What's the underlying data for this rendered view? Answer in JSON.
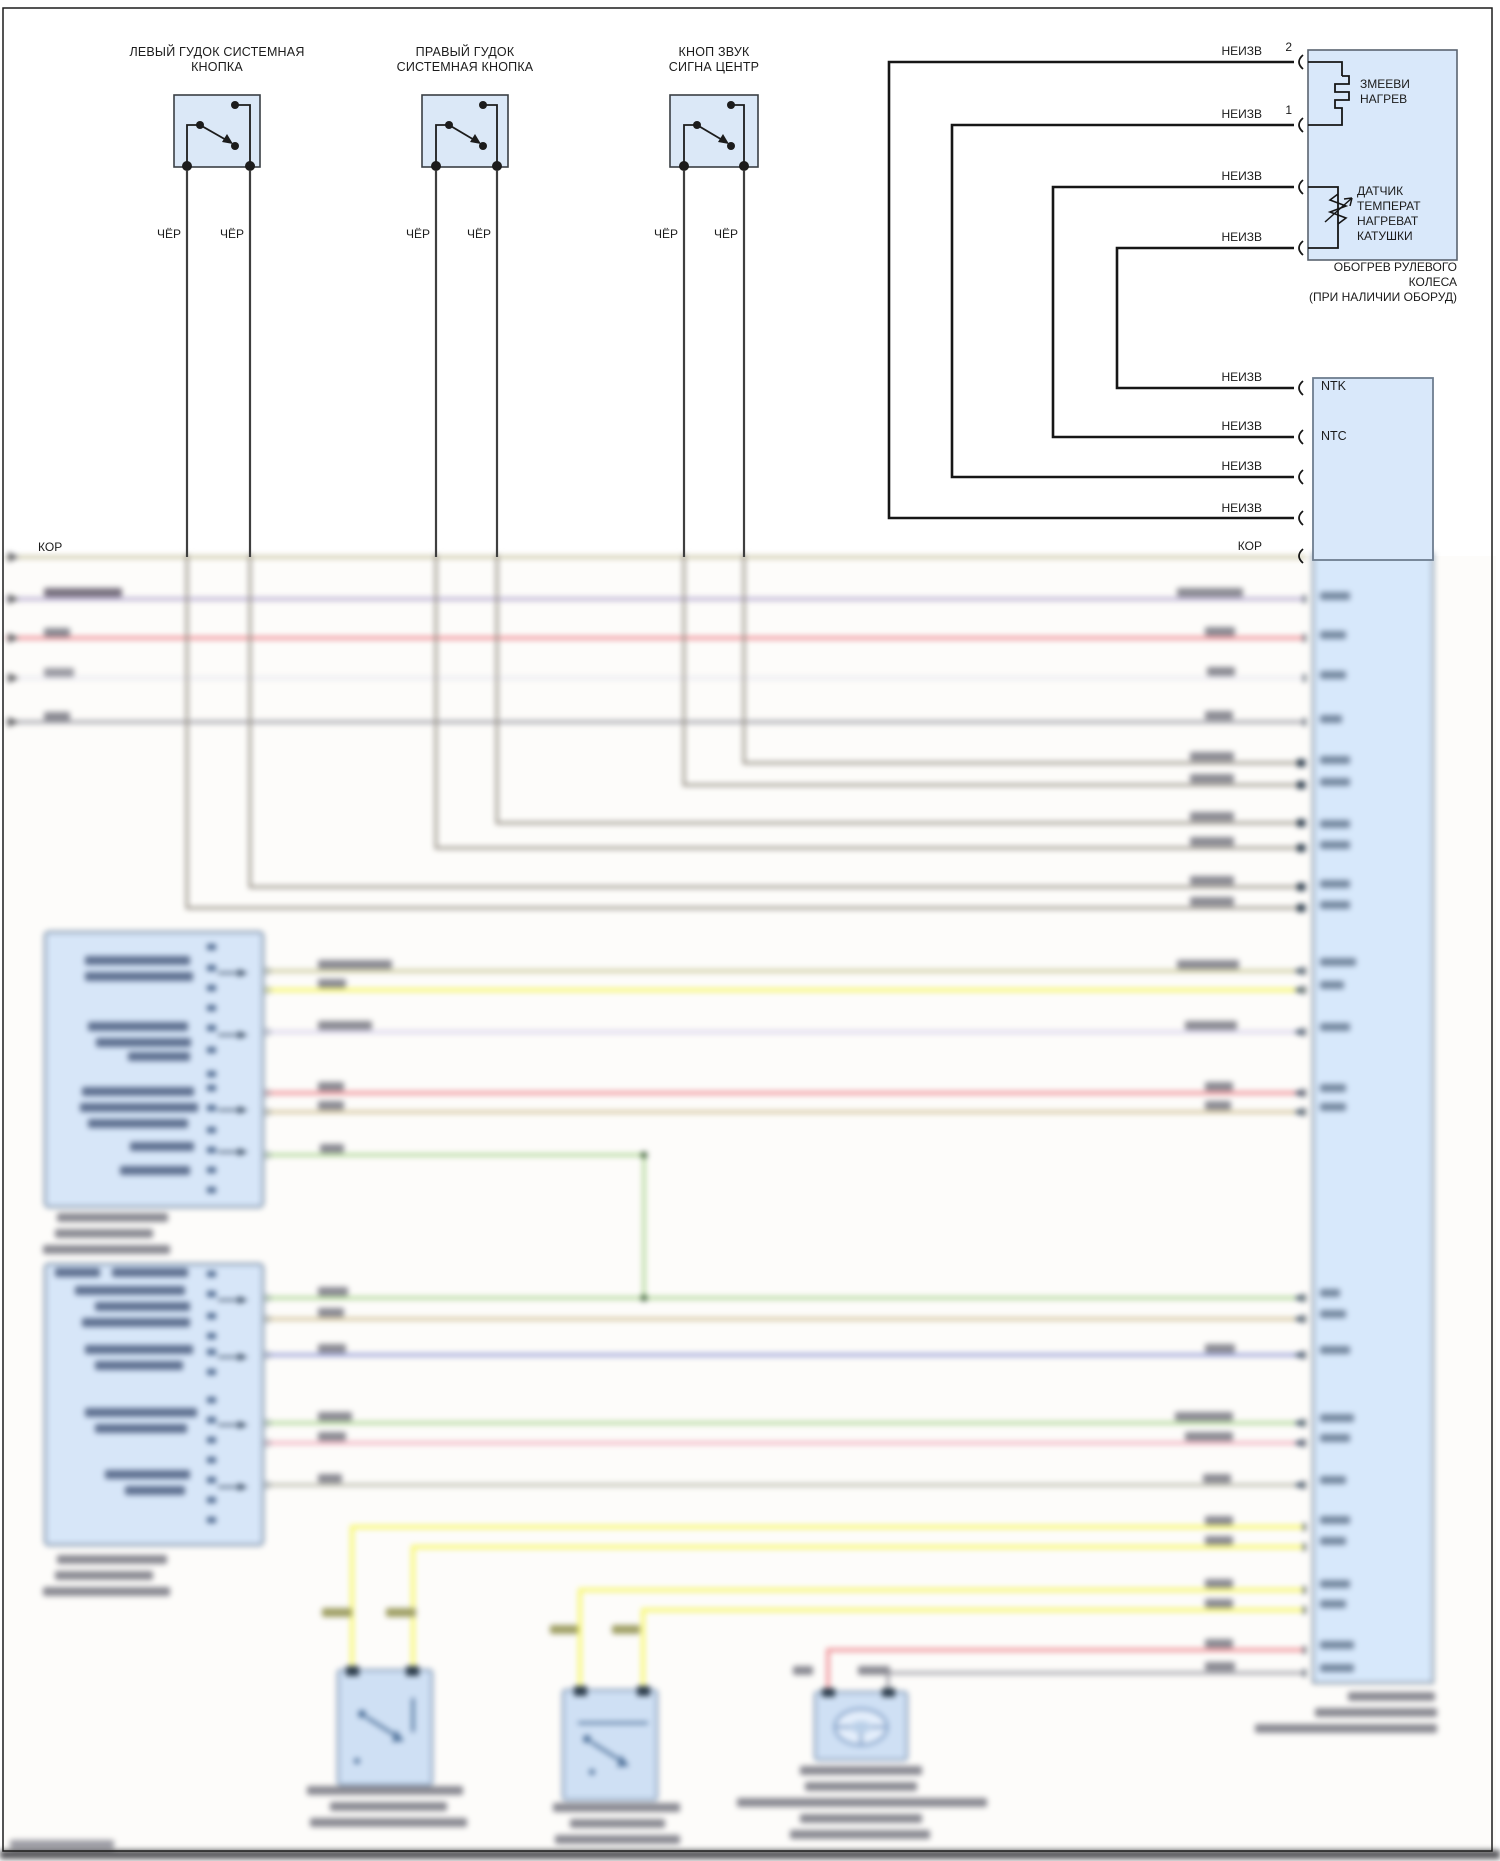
{
  "page": {
    "colors": {
      "component_fill": "#d9e8fa",
      "component_border": "#5a6470",
      "wire_black": "#1c1c1c",
      "wire_yellow": "#f7f763",
      "wire_red": "#ef9298",
      "wire_green": "#aad58e",
      "wire_purple": "#b2a7ce",
      "wire_blue": "#9ba3d9",
      "wire_tan": "#d0c193",
      "wire_gray": "#9c9ca4",
      "wire_lavender": "#d6d1eb",
      "wire_olive": "#c8c794"
    }
  },
  "switches": [
    {
      "title_line1": "ЛЕВЫЙ ГУДОК СИСТЕМНАЯ",
      "title_line2": "КНОПКА",
      "wire_label_left": "ЧЁР",
      "wire_label_right": "ЧЁР"
    },
    {
      "title_line1": "ПРАВЫЙ ГУДОК",
      "title_line2": "СИСТЕМНАЯ КНОПКА",
      "wire_label_left": "ЧЁР",
      "wire_label_right": "ЧЁР"
    },
    {
      "title_line1": "КНОП ЗВУК",
      "title_line2": "СИГНА ЦЕНТР",
      "wire_label_left": "ЧЁР",
      "wire_label_right": "ЧЁР"
    }
  ],
  "steering_heater": {
    "pin_2": "2",
    "pin_1": "1",
    "top_wire_labels": [
      "НЕИЗВ",
      "НЕИЗВ",
      "НЕИЗВ",
      "НЕИЗВ"
    ],
    "element_label": [
      "ЗМЕЕВИ",
      "НАГРЕВ"
    ],
    "sensor_label": [
      "ДАТЧИК",
      "ТЕМПЕРАТ",
      "НАГРЕВАТ",
      "КАТУШКИ"
    ],
    "caption": [
      "ОБОГРЕВ РУЛЕВОГО",
      "КОЛЕСА",
      "(ПРИ НАЛИЧИИ ОБОРУД)"
    ]
  },
  "control_module": {
    "pin_labels": [
      "NTK",
      "NTC"
    ],
    "wire_labels": [
      "НЕИЗВ",
      "НЕИЗВ",
      "НЕИЗВ",
      "НЕИЗВ",
      "КОР"
    ]
  },
  "left_wire_label": "КОР"
}
